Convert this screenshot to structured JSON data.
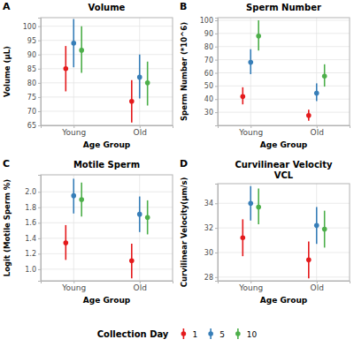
{
  "chart_data": [
    {
      "type": "errorbar",
      "panel": "A",
      "title": "Volume",
      "x_label": "Age Group",
      "y_label": "Volume (μL)",
      "legend_title": "Collection Day",
      "legend": "bottom",
      "categories": [
        "Young",
        "Old"
      ],
      "ylim": [
        65,
        103
      ],
      "yticks": [
        65,
        70,
        75,
        80,
        85,
        90,
        95,
        100
      ],
      "grid": true,
      "series": [
        {
          "name": "1",
          "color": "#e41a1c",
          "values": [
            85,
            73.5
          ],
          "lower": [
            77,
            66
          ],
          "upper": [
            93,
            81
          ]
        },
        {
          "name": "5",
          "color": "#377eb8",
          "values": [
            94,
            82
          ],
          "lower": [
            85.5,
            74.5
          ],
          "upper": [
            102.5,
            90
          ]
        },
        {
          "name": "10",
          "color": "#4daf4a",
          "values": [
            91.5,
            80
          ],
          "lower": [
            83.5,
            72
          ],
          "upper": [
            100,
            87.5
          ]
        }
      ]
    },
    {
      "type": "errorbar",
      "panel": "B",
      "title": "Sperm Number",
      "x_label": "Age Group",
      "y_label": "Sperm Number (*10^6)",
      "categories": [
        "Young",
        "Old"
      ],
      "ylim": [
        20,
        102
      ],
      "yticks": [
        30,
        40,
        50,
        60,
        70,
        80,
        90,
        100
      ],
      "grid": true,
      "series": [
        {
          "name": "1",
          "color": "#e41a1c",
          "values": [
            42,
            27.5
          ],
          "lower": [
            36,
            23.5
          ],
          "upper": [
            49,
            32
          ]
        },
        {
          "name": "5",
          "color": "#377eb8",
          "values": [
            68,
            44.5
          ],
          "lower": [
            59,
            38.5
          ],
          "upper": [
            78,
            52
          ]
        },
        {
          "name": "10",
          "color": "#4daf4a",
          "values": [
            88,
            57.5
          ],
          "lower": [
            77,
            49.5
          ],
          "upper": [
            100,
            66.5
          ]
        }
      ]
    },
    {
      "type": "errorbar",
      "panel": "C",
      "title": "Motile Sperm",
      "x_label": "Age Group",
      "y_label": "Logit (Motile Sperm %)",
      "categories": [
        "Young",
        "Old"
      ],
      "ylim": [
        0.85,
        2.22
      ],
      "yticks": [
        {
          "value": 1,
          "label": "1.0"
        },
        1.2,
        1.4,
        1.6,
        1.8,
        {
          "value": 2,
          "label": "2.0"
        }
      ],
      "grid": true,
      "series": [
        {
          "name": "1",
          "color": "#e41a1c",
          "values": [
            1.34,
            1.11
          ],
          "lower": [
            1.12,
            0.88
          ],
          "upper": [
            1.57,
            1.33
          ]
        },
        {
          "name": "5",
          "color": "#377eb8",
          "values": [
            1.95,
            1.71
          ],
          "lower": [
            1.72,
            1.48
          ],
          "upper": [
            2.17,
            1.94
          ]
        },
        {
          "name": "10",
          "color": "#4daf4a",
          "values": [
            1.9,
            1.67
          ],
          "lower": [
            1.68,
            1.45
          ],
          "upper": [
            2.12,
            1.89
          ]
        }
      ]
    },
    {
      "type": "errorbar",
      "panel": "D",
      "title": "Curvilinear Velocity",
      "subtitle": "VCL",
      "x_label": "Age Group",
      "y_label": "Curvilinear Velocity(μm/s)",
      "categories": [
        "Young",
        "Old"
      ],
      "ylim": [
        27.7,
        35.6
      ],
      "yticks": [
        28,
        30,
        32,
        34
      ],
      "grid": true,
      "series": [
        {
          "name": "1",
          "color": "#e41a1c",
          "values": [
            31.2,
            29.4
          ],
          "lower": [
            29.7,
            27.9
          ],
          "upper": [
            32.7,
            30.9
          ]
        },
        {
          "name": "5",
          "color": "#377eb8",
          "values": [
            34.0,
            32.2
          ],
          "lower": [
            32.6,
            30.7
          ],
          "upper": [
            35.4,
            33.7
          ]
        },
        {
          "name": "10",
          "color": "#4daf4a",
          "values": [
            33.7,
            31.9
          ],
          "lower": [
            32.3,
            30.4
          ],
          "upper": [
            35.2,
            33.4
          ]
        }
      ]
    }
  ]
}
